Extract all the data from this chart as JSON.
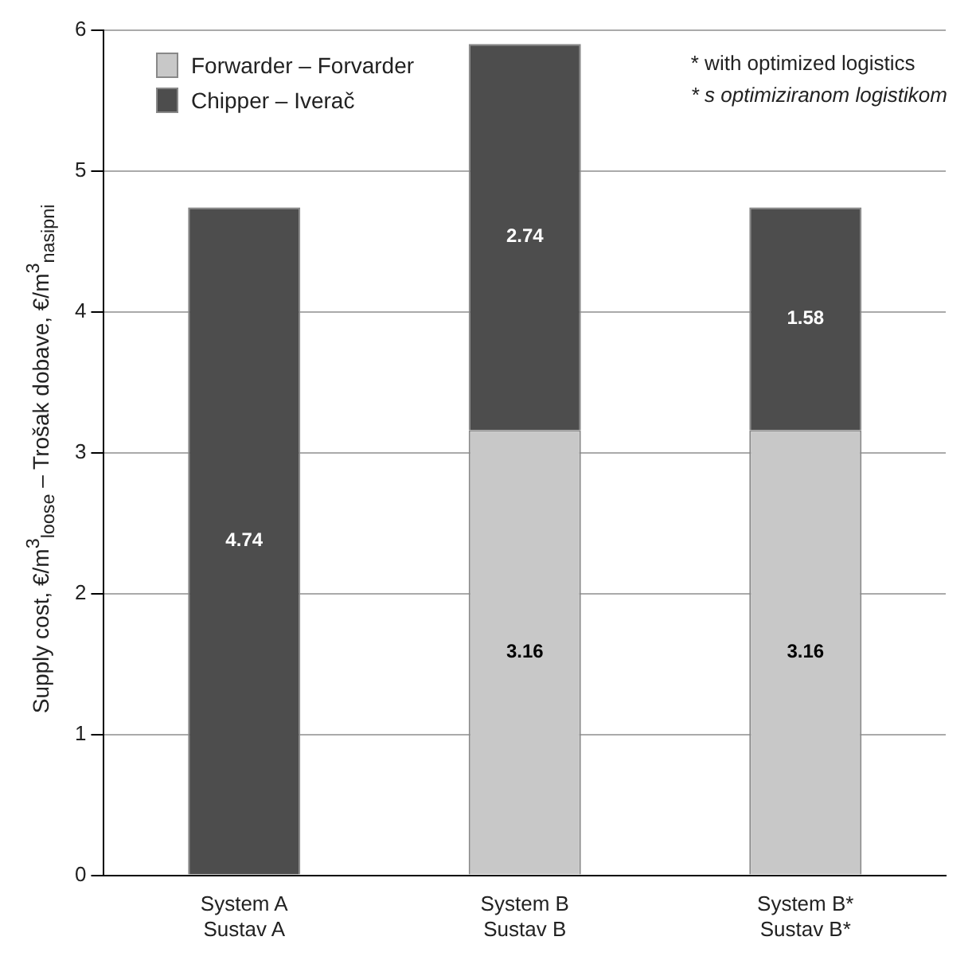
{
  "chart_data": {
    "type": "bar",
    "stacked": true,
    "ylabel": "Supply cost, €/m$^{3}$$_{loose}$ – Trošak dobave, €/m$^{3}$$_{nasipni}$",
    "categories": [
      "System A\nSustav A",
      "System B\nSustav B",
      "System B*\nSustav B*"
    ],
    "series": [
      {
        "name": "Forwarder – Forvarder",
        "color": "#c8c8c8",
        "values": [
          null,
          3.16,
          3.16
        ]
      },
      {
        "name": "Chipper – Iverač",
        "color": "#4d4d4d",
        "values": [
          4.74,
          2.74,
          1.58
        ]
      }
    ],
    "ylim": [
      0,
      6
    ],
    "yticks": [
      0,
      1,
      2,
      3,
      4,
      5,
      6
    ],
    "grid": "y",
    "legend": "top left",
    "data_labels": true,
    "annotations": [
      "* with optimized logistics",
      "* s optimiziranom logistikom"
    ]
  }
}
